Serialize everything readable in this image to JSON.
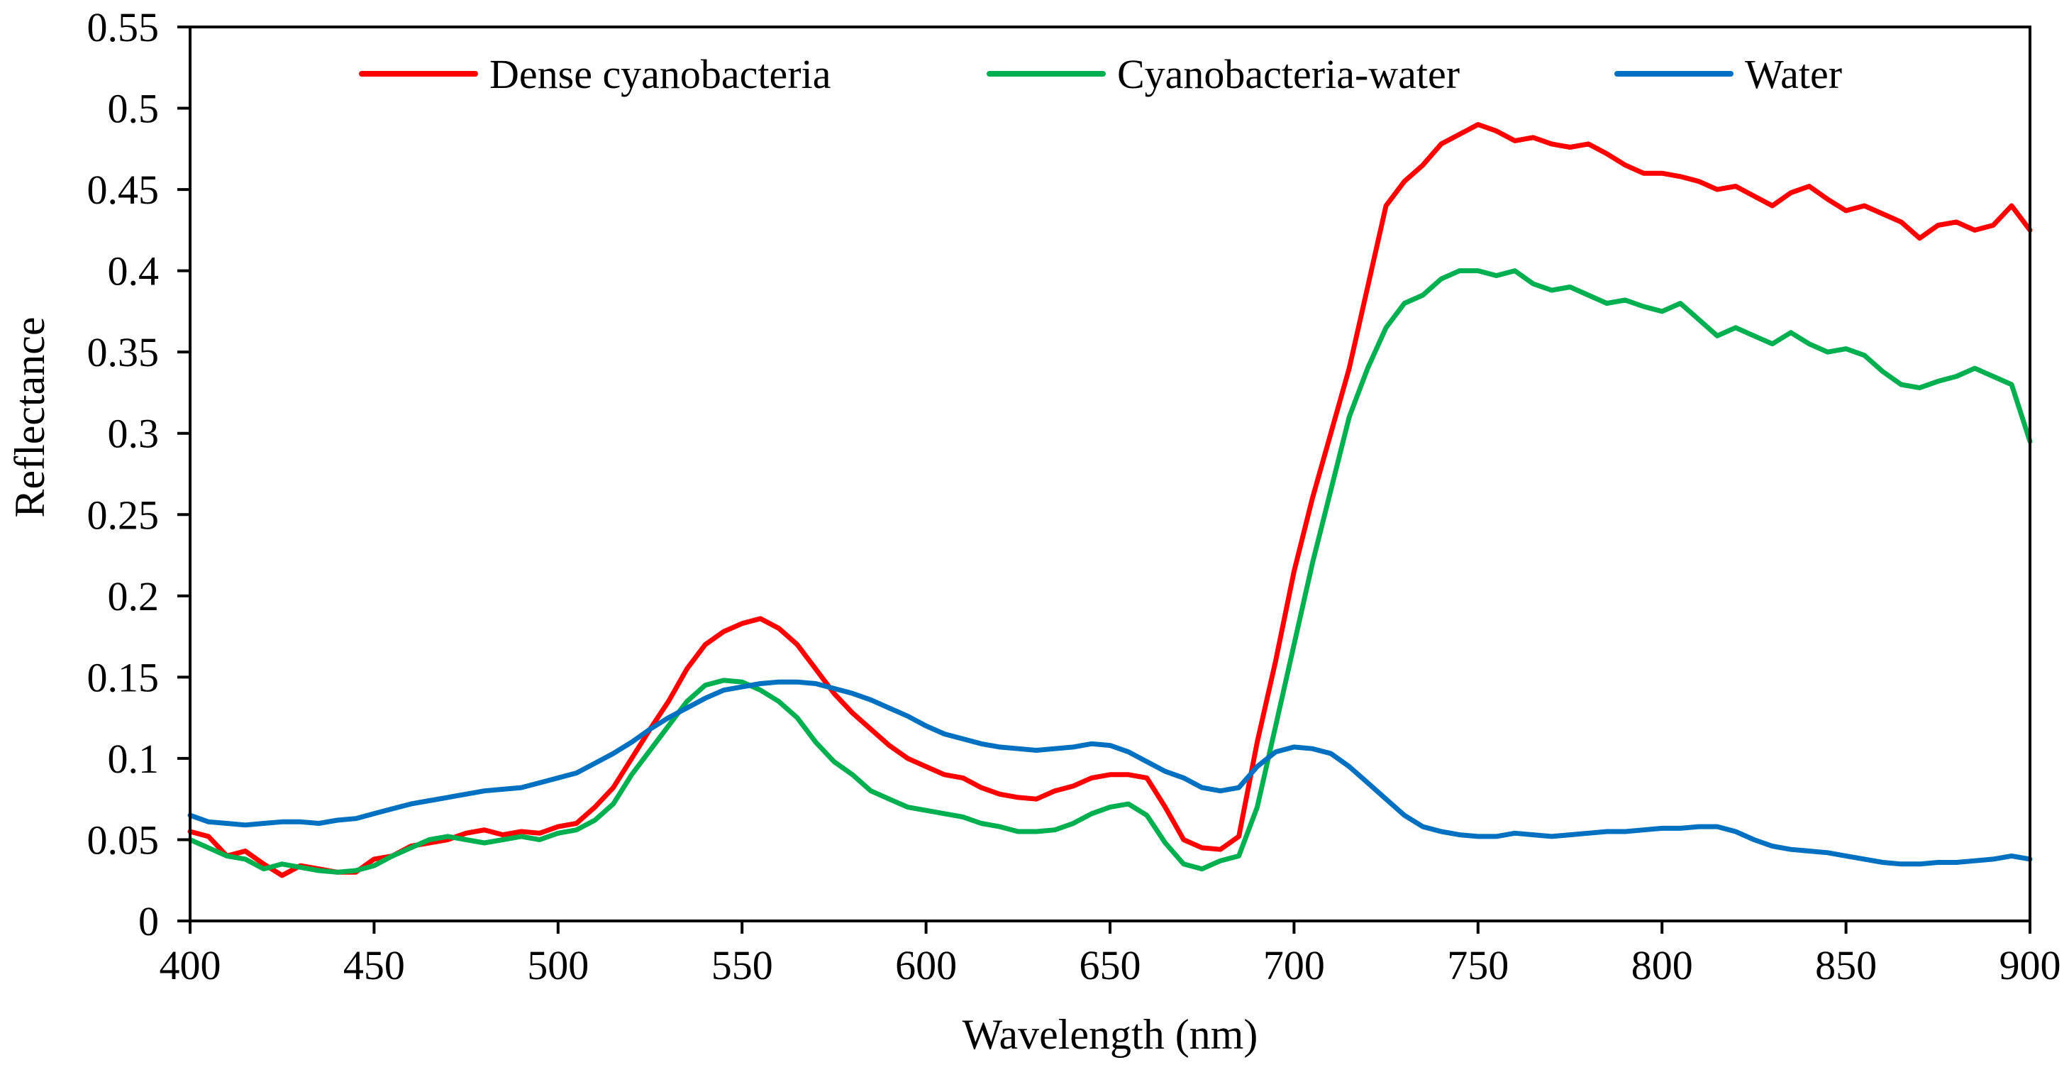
{
  "chart_data": {
    "type": "line",
    "title": "",
    "xlabel": "Wavelength (nm)",
    "ylabel": "Reflectance",
    "xlim": [
      400,
      900
    ],
    "ylim": [
      0,
      0.55
    ],
    "xticks": [
      400,
      450,
      500,
      550,
      600,
      650,
      700,
      750,
      800,
      850,
      900
    ],
    "xtick_labels": [
      "400",
      "450",
      "500",
      "550",
      "600",
      "650",
      "700",
      "750",
      "800",
      "850",
      "900"
    ],
    "yticks": [
      0,
      0.05,
      0.1,
      0.15,
      0.2,
      0.25,
      0.3,
      0.35,
      0.4,
      0.45,
      0.5,
      0.55
    ],
    "ytick_labels": [
      "0",
      "0.05",
      "0.1",
      "0.15",
      "0.2",
      "0.25",
      "0.3",
      "0.35",
      "0.4",
      "0.45",
      "0.5",
      "0.55"
    ],
    "grid": false,
    "legend_position": "top",
    "series": [
      {
        "name": "Dense cyanobacteria",
        "color": "#ff0000",
        "x": [
          400,
          405,
          410,
          415,
          420,
          425,
          430,
          435,
          440,
          445,
          450,
          455,
          460,
          465,
          470,
          475,
          480,
          485,
          490,
          495,
          500,
          505,
          510,
          515,
          520,
          525,
          530,
          535,
          540,
          545,
          550,
          555,
          560,
          565,
          570,
          575,
          580,
          585,
          590,
          595,
          600,
          605,
          610,
          615,
          620,
          625,
          630,
          635,
          640,
          645,
          650,
          655,
          660,
          665,
          670,
          675,
          680,
          685,
          690,
          695,
          700,
          705,
          710,
          715,
          720,
          725,
          730,
          735,
          740,
          745,
          750,
          755,
          760,
          765,
          770,
          775,
          780,
          785,
          790,
          795,
          800,
          805,
          810,
          815,
          820,
          825,
          830,
          835,
          840,
          845,
          850,
          855,
          860,
          865,
          870,
          875,
          880,
          885,
          890,
          895,
          900
        ],
        "y": [
          0.055,
          0.052,
          0.04,
          0.043,
          0.035,
          0.028,
          0.034,
          0.032,
          0.03,
          0.03,
          0.038,
          0.04,
          0.046,
          0.048,
          0.05,
          0.054,
          0.056,
          0.053,
          0.055,
          0.054,
          0.058,
          0.06,
          0.07,
          0.082,
          0.1,
          0.118,
          0.135,
          0.155,
          0.17,
          0.178,
          0.183,
          0.186,
          0.18,
          0.17,
          0.155,
          0.14,
          0.128,
          0.118,
          0.108,
          0.1,
          0.095,
          0.09,
          0.088,
          0.082,
          0.078,
          0.076,
          0.075,
          0.08,
          0.083,
          0.088,
          0.09,
          0.09,
          0.088,
          0.07,
          0.05,
          0.045,
          0.044,
          0.052,
          0.11,
          0.16,
          0.215,
          0.26,
          0.3,
          0.34,
          0.39,
          0.44,
          0.455,
          0.465,
          0.478,
          0.484,
          0.49,
          0.486,
          0.48,
          0.482,
          0.478,
          0.476,
          0.478,
          0.472,
          0.465,
          0.46,
          0.46,
          0.458,
          0.455,
          0.45,
          0.452,
          0.446,
          0.44,
          0.448,
          0.452,
          0.444,
          0.437,
          0.44,
          0.435,
          0.43,
          0.42,
          0.428,
          0.43,
          0.425,
          0.428,
          0.44,
          0.425
        ]
      },
      {
        "name": "Cyanobacteria-water",
        "color": "#00b050",
        "x": [
          400,
          405,
          410,
          415,
          420,
          425,
          430,
          435,
          440,
          445,
          450,
          455,
          460,
          465,
          470,
          475,
          480,
          485,
          490,
          495,
          500,
          505,
          510,
          515,
          520,
          525,
          530,
          535,
          540,
          545,
          550,
          555,
          560,
          565,
          570,
          575,
          580,
          585,
          590,
          595,
          600,
          605,
          610,
          615,
          620,
          625,
          630,
          635,
          640,
          645,
          650,
          655,
          660,
          665,
          670,
          675,
          680,
          685,
          690,
          695,
          700,
          705,
          710,
          715,
          720,
          725,
          730,
          735,
          740,
          745,
          750,
          755,
          760,
          765,
          770,
          775,
          780,
          785,
          790,
          795,
          800,
          805,
          810,
          815,
          820,
          825,
          830,
          835,
          840,
          845,
          850,
          855,
          860,
          865,
          870,
          875,
          880,
          885,
          890,
          895,
          900
        ],
        "y": [
          0.05,
          0.045,
          0.04,
          0.038,
          0.032,
          0.035,
          0.033,
          0.031,
          0.03,
          0.031,
          0.034,
          0.04,
          0.045,
          0.05,
          0.052,
          0.05,
          0.048,
          0.05,
          0.052,
          0.05,
          0.054,
          0.056,
          0.062,
          0.072,
          0.09,
          0.105,
          0.12,
          0.135,
          0.145,
          0.148,
          0.147,
          0.142,
          0.135,
          0.125,
          0.11,
          0.098,
          0.09,
          0.08,
          0.075,
          0.07,
          0.068,
          0.066,
          0.064,
          0.06,
          0.058,
          0.055,
          0.055,
          0.056,
          0.06,
          0.066,
          0.07,
          0.072,
          0.065,
          0.048,
          0.035,
          0.032,
          0.037,
          0.04,
          0.07,
          0.12,
          0.17,
          0.22,
          0.265,
          0.31,
          0.34,
          0.365,
          0.38,
          0.385,
          0.395,
          0.4,
          0.4,
          0.397,
          0.4,
          0.392,
          0.388,
          0.39,
          0.385,
          0.38,
          0.382,
          0.378,
          0.375,
          0.38,
          0.37,
          0.36,
          0.365,
          0.36,
          0.355,
          0.362,
          0.355,
          0.35,
          0.352,
          0.348,
          0.338,
          0.33,
          0.328,
          0.332,
          0.335,
          0.34,
          0.335,
          0.33,
          0.295
        ]
      },
      {
        "name": "Water",
        "color": "#0070c0",
        "x": [
          400,
          405,
          410,
          415,
          420,
          425,
          430,
          435,
          440,
          445,
          450,
          455,
          460,
          465,
          470,
          475,
          480,
          485,
          490,
          495,
          500,
          505,
          510,
          515,
          520,
          525,
          530,
          535,
          540,
          545,
          550,
          555,
          560,
          565,
          570,
          575,
          580,
          585,
          590,
          595,
          600,
          605,
          610,
          615,
          620,
          625,
          630,
          635,
          640,
          645,
          650,
          655,
          660,
          665,
          670,
          675,
          680,
          685,
          690,
          695,
          700,
          705,
          710,
          715,
          720,
          725,
          730,
          735,
          740,
          745,
          750,
          755,
          760,
          765,
          770,
          775,
          780,
          785,
          790,
          795,
          800,
          805,
          810,
          815,
          820,
          825,
          830,
          835,
          840,
          845,
          850,
          855,
          860,
          865,
          870,
          875,
          880,
          885,
          890,
          895,
          900
        ],
        "y": [
          0.065,
          0.061,
          0.06,
          0.059,
          0.06,
          0.061,
          0.061,
          0.06,
          0.062,
          0.063,
          0.066,
          0.069,
          0.072,
          0.074,
          0.076,
          0.078,
          0.08,
          0.081,
          0.082,
          0.085,
          0.088,
          0.091,
          0.097,
          0.103,
          0.11,
          0.118,
          0.125,
          0.131,
          0.137,
          0.142,
          0.144,
          0.146,
          0.147,
          0.147,
          0.146,
          0.143,
          0.14,
          0.136,
          0.131,
          0.126,
          0.12,
          0.115,
          0.112,
          0.109,
          0.107,
          0.106,
          0.105,
          0.106,
          0.107,
          0.109,
          0.108,
          0.104,
          0.098,
          0.092,
          0.088,
          0.082,
          0.08,
          0.082,
          0.095,
          0.104,
          0.107,
          0.106,
          0.103,
          0.095,
          0.085,
          0.075,
          0.065,
          0.058,
          0.055,
          0.053,
          0.052,
          0.052,
          0.054,
          0.053,
          0.052,
          0.053,
          0.054,
          0.055,
          0.055,
          0.056,
          0.057,
          0.057,
          0.058,
          0.058,
          0.055,
          0.05,
          0.046,
          0.044,
          0.043,
          0.042,
          0.04,
          0.038,
          0.036,
          0.035,
          0.035,
          0.036,
          0.036,
          0.037,
          0.038,
          0.04,
          0.038
        ]
      }
    ]
  }
}
